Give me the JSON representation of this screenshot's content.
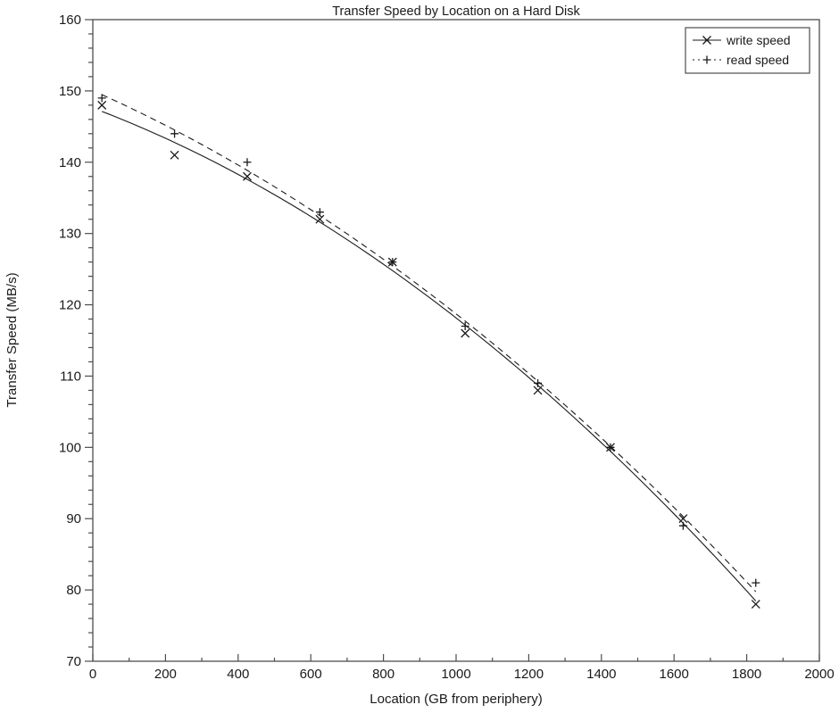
{
  "chart_data": {
    "type": "scatter",
    "title": "Transfer Speed by Location on a Hard Disk",
    "xlabel": "Location (GB from periphery)",
    "ylabel": "Transfer Speed (MB/s)",
    "xlim": [
      0,
      2000
    ],
    "ylim": [
      70,
      160
    ],
    "x_ticks_major": [
      0,
      200,
      400,
      600,
      800,
      1000,
      1200,
      1400,
      1600,
      1800,
      2000
    ],
    "x_minor_step": 100,
    "y_ticks_major": [
      70,
      80,
      90,
      100,
      110,
      120,
      130,
      140,
      150,
      160
    ],
    "y_minor_step": 2,
    "grid": false,
    "legend_position": "top-right",
    "background_color": "#ffffff",
    "axis_color": "#4d4d4d",
    "data_color": "#1a1a1a",
    "x": [
      25,
      225,
      425,
      625,
      825,
      1025,
      1225,
      1425,
      1625,
      1825
    ],
    "series": [
      {
        "name": "write speed",
        "marker": "x",
        "line_style": "solid",
        "fit": "quadratic",
        "values": [
          148,
          141,
          138,
          132,
          126,
          116,
          108,
          100,
          90,
          78
        ]
      },
      {
        "name": "read speed",
        "marker": "+",
        "line_style": "dashed",
        "fit": "quadratic",
        "values": [
          149,
          144,
          140,
          133,
          126,
          117,
          109,
          100,
          89,
          81
        ]
      }
    ]
  }
}
